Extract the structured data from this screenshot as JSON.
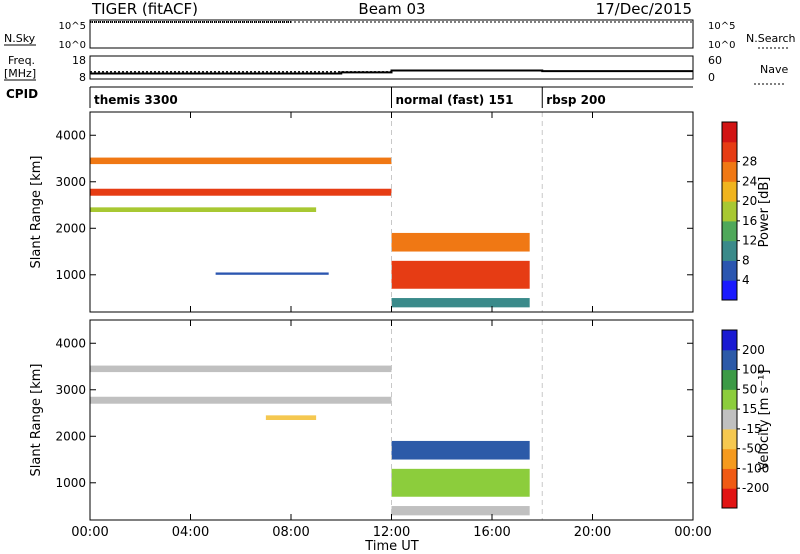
{
  "header": {
    "radar": "TIGER (fitACF)",
    "beam": "Beam 03",
    "date": "17/Dec/2015"
  },
  "chart_data": [
    {
      "type": "line",
      "panel": "noise",
      "left_label": "N.Sky",
      "right_label": "N.Search",
      "left_ticks": [
        "10^5",
        "10^0"
      ],
      "right_ticks": [
        "10^5",
        "10^0"
      ],
      "series": [
        {
          "x": [
            0.0,
            1.0,
            2.0,
            3.0,
            4.0,
            5.0,
            6.0,
            7.0,
            8.0
          ],
          "y": [
            5,
            5,
            5,
            5,
            5,
            5,
            5,
            5,
            5
          ]
        },
        {
          "x": [
            0.0,
            12.0,
            18.0,
            24.0
          ],
          "y": [
            5,
            5,
            5,
            5
          ]
        }
      ]
    },
    {
      "type": "line",
      "panel": "frequency",
      "left_label": "Freq.",
      "left_unit": "[MHz]",
      "right_label": "Nave",
      "left_ticks": [
        "18",
        "8"
      ],
      "right_ticks": [
        "60",
        "0"
      ],
      "ylim_left": [
        8,
        18
      ],
      "ylim_right": [
        0,
        60
      ],
      "series": [
        {
          "x": [
            0.0,
            10.0,
            10.0,
            12.0,
            12.0,
            18.0,
            18.0,
            24.0
          ],
          "y": [
            10.4,
            10.4,
            10.9,
            10.9,
            11.7,
            11.7,
            11.4,
            11.4
          ]
        },
        {
          "x": [
            0.0,
            12.0,
            12.0,
            18.0,
            18.0,
            24.0
          ],
          "y": [
            19,
            19,
            22,
            22,
            20,
            20
          ]
        }
      ]
    },
    {
      "type": "table",
      "panel": "cpid",
      "left_label": "CPID",
      "segments": [
        {
          "label": "themis 3300",
          "start": 0,
          "end": 12
        },
        {
          "label": "normal (fast) 151",
          "start": 12,
          "end": 18
        },
        {
          "label": "rbsp 200",
          "start": 18,
          "end": 24
        }
      ]
    },
    {
      "type": "heatmap",
      "panel": "power",
      "ylabel": "Slant Range [km]",
      "y_ticks": [
        "1000",
        "2000",
        "3000",
        "4000"
      ],
      "ylim": [
        200,
        4500
      ],
      "colorbar": {
        "label": "Power [dB]",
        "ticks": [
          "4",
          "8",
          "12",
          "16",
          "20",
          "24",
          "28"
        ],
        "range": [
          0,
          30
        ]
      },
      "regions": [
        {
          "x": [
            0.0,
            12.0
          ],
          "y": [
            3380,
            3520
          ],
          "value": 20
        },
        {
          "x": [
            0.0,
            12.0
          ],
          "y": [
            2700,
            2850
          ],
          "value": 25
        },
        {
          "x": [
            0.0,
            9.0
          ],
          "y": [
            2350,
            2450
          ],
          "value": 14
        },
        {
          "x": [
            5.0,
            9.5
          ],
          "y": [
            1000,
            1050
          ],
          "value": 6
        },
        {
          "x": [
            12.0,
            17.5
          ],
          "y": [
            1500,
            1900
          ],
          "value": 20
        },
        {
          "x": [
            12.0,
            17.5
          ],
          "y": [
            700,
            1300
          ],
          "value": 24
        },
        {
          "x": [
            12.0,
            17.5
          ],
          "y": [
            300,
            500
          ],
          "value": 8
        }
      ]
    },
    {
      "type": "heatmap",
      "panel": "velocity",
      "ylabel": "Slant Range [km]",
      "y_ticks": [
        "1000",
        "2000",
        "3000",
        "4000"
      ],
      "ylim": [
        200,
        4500
      ],
      "colorbar": {
        "label": "Velocity [m s⁻¹]",
        "ticks": [
          "200",
          "100",
          "50",
          "15",
          "-15",
          "-50",
          "-100",
          "-200"
        ],
        "range": [
          -250,
          250
        ]
      },
      "regions": [
        {
          "x": [
            0.0,
            12.0
          ],
          "y": [
            3380,
            3520
          ],
          "value": 0
        },
        {
          "x": [
            0.0,
            12.0
          ],
          "y": [
            2700,
            2850
          ],
          "value": 0
        },
        {
          "x": [
            7.0,
            9.0
          ],
          "y": [
            2350,
            2450
          ],
          "value": -40
        },
        {
          "x": [
            12.0,
            17.5
          ],
          "y": [
            1500,
            1900
          ],
          "value": 180
        },
        {
          "x": [
            12.0,
            17.5
          ],
          "y": [
            700,
            1300
          ],
          "value": 40
        },
        {
          "x": [
            12.0,
            17.5
          ],
          "y": [
            300,
            500
          ],
          "value": 0
        }
      ]
    }
  ],
  "x_axis": {
    "label": "Time UT",
    "ticks": [
      "00:00",
      "04:00",
      "08:00",
      "12:00",
      "16:00",
      "20:00",
      "00:00"
    ],
    "range": [
      0,
      24
    ]
  }
}
